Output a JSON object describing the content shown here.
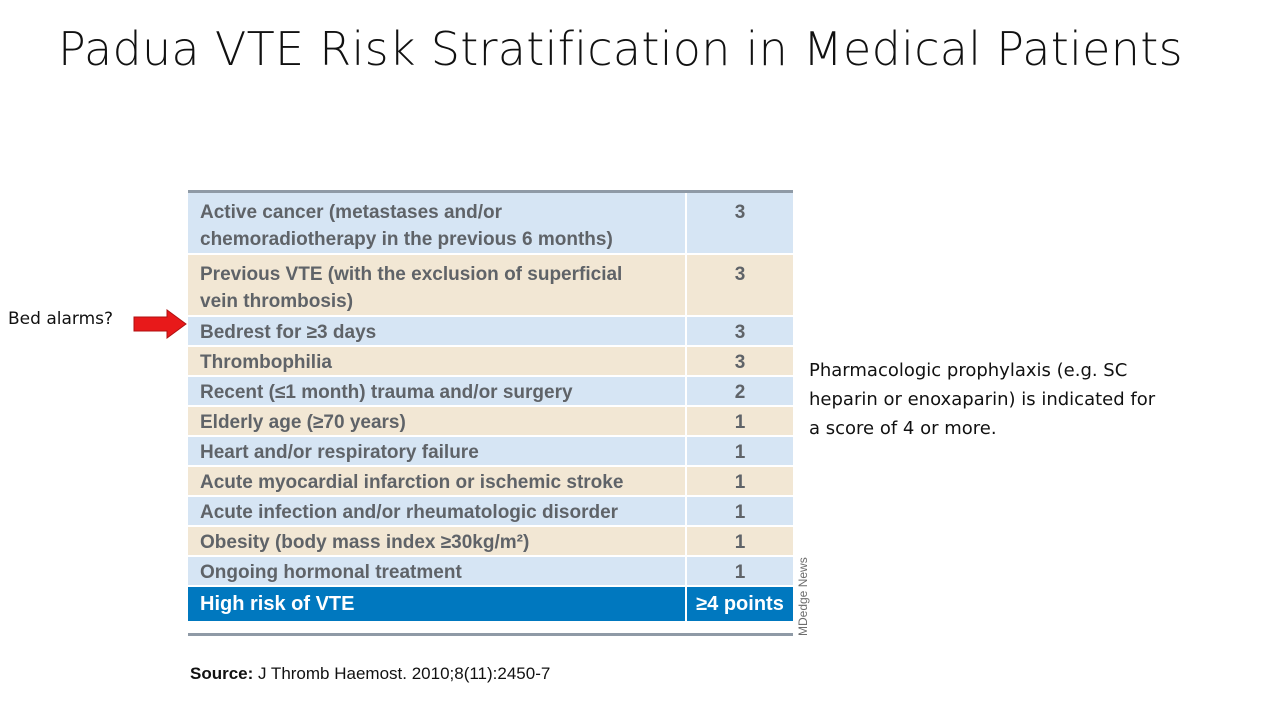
{
  "slide": {
    "title": "Padua VTE Risk Stratification in Medical Patients"
  },
  "table": {
    "rows": [
      {
        "factor_line1": "Active cancer (metastases and/or",
        "factor_line2": "chemoradiotherapy in the previous 6 months)",
        "points": "3"
      },
      {
        "factor_line1": "Previous VTE (with the exclusion of superficial",
        "factor_line2": "vein thrombosis)",
        "points": "3"
      },
      {
        "factor": "Bedrest for ≥3 days",
        "points": "3"
      },
      {
        "factor": "Thrombophilia",
        "points": "3"
      },
      {
        "factor": "Recent (≤1 month) trauma and/or surgery",
        "points": "2"
      },
      {
        "factor": "Elderly age (≥70 years)",
        "points": "1"
      },
      {
        "factor": "Heart and/or respiratory failure",
        "points": "1"
      },
      {
        "factor": "Acute myocardial infarction or ischemic stroke",
        "points": "1"
      },
      {
        "factor": "Acute infection and/or rheumatologic disorder",
        "points": "1"
      },
      {
        "factor": "Obesity (body mass index ≥30kg/m²)",
        "points": "1"
      },
      {
        "factor": "Ongoing hormonal treatment",
        "points": "1"
      }
    ],
    "high_risk": {
      "label": "High risk of VTE",
      "points": "≥4 points"
    }
  },
  "credit": "MDedge News",
  "source": {
    "prefix": "Source:",
    "text": " J Thromb Haemost. 2010;8(11):2450-7"
  },
  "annotation": {
    "text": "Bed alarms?",
    "arrow_color": "#e8191a",
    "arrow_icon": "right-arrow-icon"
  },
  "note": "Pharmacologic prophylaxis (e.g. SC heparin or enoxaparin) is indicated for a score of 4 or more.",
  "colors": {
    "row_blue": "#d6e5f4",
    "row_tan": "#f2e7d4",
    "header_blue": "#0078bf"
  }
}
